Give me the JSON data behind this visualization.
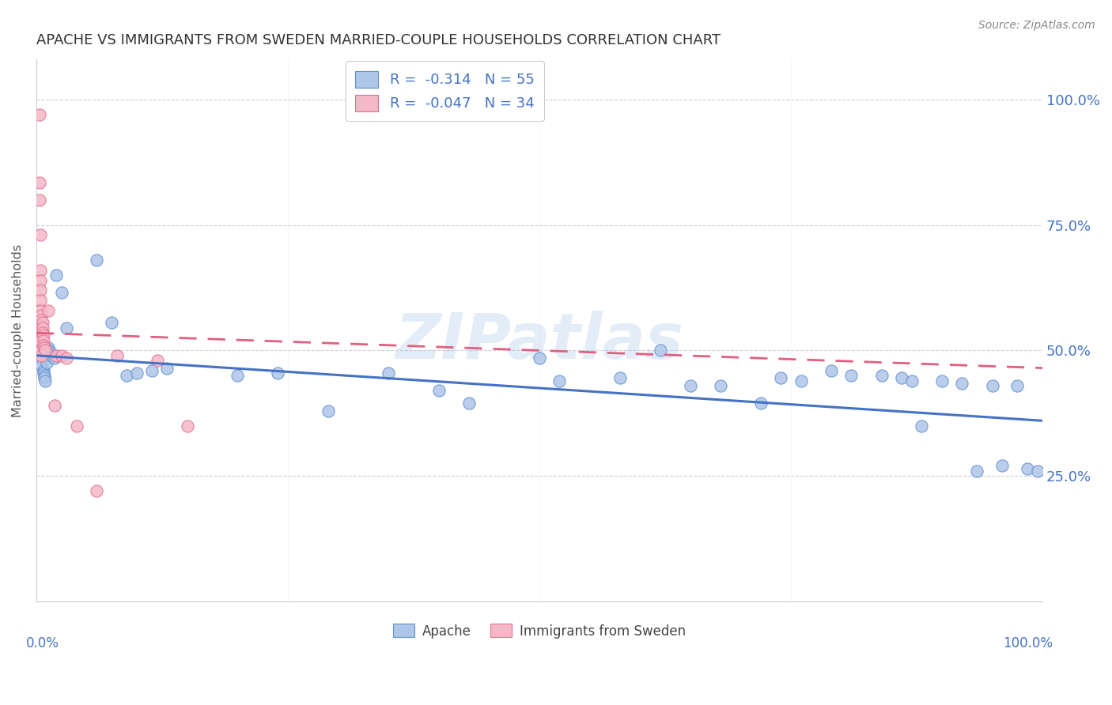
{
  "title": "APACHE VS IMMIGRANTS FROM SWEDEN MARRIED-COUPLE HOUSEHOLDS CORRELATION CHART",
  "source": "Source: ZipAtlas.com",
  "ylabel": "Married-couple Households",
  "ytick_labels": [
    "100.0%",
    "75.0%",
    "50.0%",
    "25.0%"
  ],
  "ytick_positions": [
    1.0,
    0.75,
    0.5,
    0.25
  ],
  "xlim": [
    0.0,
    1.0
  ],
  "ylim": [
    0.0,
    1.08
  ],
  "legend_R_blue": "-0.314",
  "legend_N_blue": "55",
  "legend_R_pink": "-0.047",
  "legend_N_pink": "34",
  "legend_label_blue": "Apache",
  "legend_label_pink": "Immigrants from Sweden",
  "blue_fill": "#aec6e8",
  "pink_fill": "#f5b8c8",
  "blue_edge": "#6090d0",
  "pink_edge": "#e07090",
  "blue_line": "#4472c4",
  "pink_line": "#e06080",
  "watermark": "ZIPatlas",
  "blue_x": [
    0.005,
    0.005,
    0.005,
    0.007,
    0.007,
    0.008,
    0.008,
    0.009,
    0.01,
    0.01,
    0.01,
    0.01,
    0.012,
    0.012,
    0.015,
    0.015,
    0.018,
    0.02,
    0.025,
    0.03,
    0.06,
    0.075,
    0.09,
    0.1,
    0.115,
    0.13,
    0.2,
    0.24,
    0.29,
    0.35,
    0.4,
    0.43,
    0.5,
    0.52,
    0.58,
    0.62,
    0.65,
    0.68,
    0.72,
    0.74,
    0.76,
    0.79,
    0.81,
    0.84,
    0.86,
    0.87,
    0.88,
    0.9,
    0.92,
    0.935,
    0.95,
    0.96,
    0.975,
    0.985,
    0.995
  ],
  "blue_y": [
    0.5,
    0.485,
    0.47,
    0.46,
    0.455,
    0.45,
    0.445,
    0.44,
    0.5,
    0.495,
    0.485,
    0.475,
    0.505,
    0.5,
    0.495,
    0.49,
    0.485,
    0.65,
    0.615,
    0.545,
    0.68,
    0.555,
    0.45,
    0.455,
    0.46,
    0.465,
    0.45,
    0.455,
    0.38,
    0.455,
    0.42,
    0.395,
    0.485,
    0.44,
    0.445,
    0.5,
    0.43,
    0.43,
    0.395,
    0.445,
    0.44,
    0.46,
    0.45,
    0.45,
    0.445,
    0.44,
    0.35,
    0.44,
    0.435,
    0.26,
    0.43,
    0.27,
    0.43,
    0.265,
    0.26
  ],
  "pink_x": [
    0.003,
    0.003,
    0.003,
    0.004,
    0.004,
    0.004,
    0.004,
    0.004,
    0.004,
    0.005,
    0.005,
    0.005,
    0.005,
    0.005,
    0.005,
    0.005,
    0.006,
    0.006,
    0.006,
    0.007,
    0.007,
    0.007,
    0.008,
    0.009,
    0.012,
    0.018,
    0.02,
    0.025,
    0.03,
    0.04,
    0.06,
    0.08,
    0.12,
    0.15
  ],
  "pink_y": [
    0.97,
    0.835,
    0.8,
    0.73,
    0.66,
    0.64,
    0.62,
    0.6,
    0.58,
    0.57,
    0.56,
    0.55,
    0.54,
    0.52,
    0.5,
    0.49,
    0.555,
    0.545,
    0.535,
    0.53,
    0.52,
    0.51,
    0.505,
    0.5,
    0.58,
    0.39,
    0.49,
    0.49,
    0.485,
    0.35,
    0.22,
    0.49,
    0.48,
    0.35
  ]
}
